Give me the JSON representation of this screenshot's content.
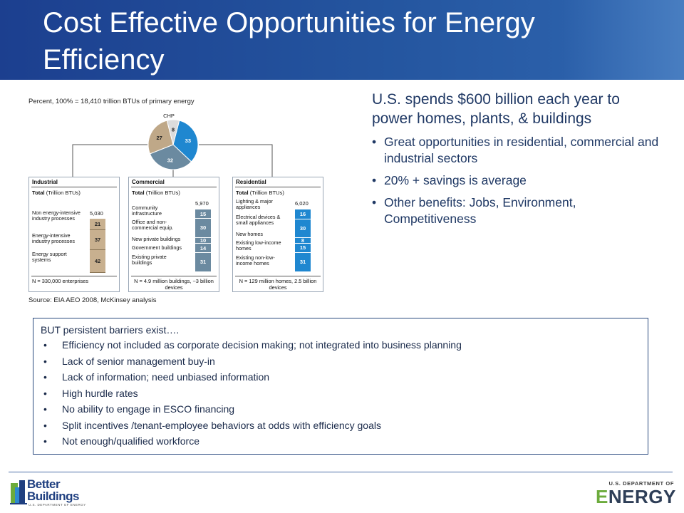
{
  "title": "Cost Effective Opportunities for Energy Efficiency",
  "figure": {
    "caption": "Percent, 100% = 18,410 trillion BTUs of primary energy",
    "source": "Source: EIA AEO 2008, McKinsey analysis"
  },
  "chart_data": [
    {
      "type": "pie",
      "categories": [
        "Commercial",
        "Residential",
        "Industrial",
        "CHP"
      ],
      "values": [
        33,
        32,
        27,
        8
      ],
      "slice_labels": [
        "33",
        "32",
        "27",
        "8"
      ],
      "callout": "CHP",
      "colors": [
        "#1f87d0",
        "#6b8aa0",
        "#bfa888",
        "#dcdcdc"
      ]
    },
    {
      "type": "bar",
      "title": "Industrial",
      "subtitle_bold": "Total",
      "subtitle_rest": " (Trillion BTUs)",
      "total": "5,030",
      "categories": [
        "Non energy-intensive industry processes",
        "Energy-intensive industry processes",
        "Energy support systems"
      ],
      "values": [
        21,
        37,
        42
      ],
      "footnote": "N = 330,000 enterprises",
      "color": "#c8b08f"
    },
    {
      "type": "bar",
      "title": "Commercial",
      "subtitle_bold": "Total",
      "subtitle_rest": " (Trillion BTUs)",
      "total": "5,970",
      "categories": [
        "Community infrastructure",
        "Office and non-commercial equip.",
        "New private buildings",
        "Government buildings",
        "Existing private buildings"
      ],
      "values": [
        15,
        30,
        10,
        14,
        31
      ],
      "footnote": "N = 4.9 million buildings, ~3 billion devices",
      "color": "#6b8aa0"
    },
    {
      "type": "bar",
      "title": "Residential",
      "subtitle_bold": "Total",
      "subtitle_rest": " (Trillion BTUs)",
      "total": "6,020",
      "categories": [
        "Lighting & major appliances",
        "Electrical devices & small appliances",
        "New homes",
        "Existing low-income homes",
        "Existing non-low-income homes"
      ],
      "values": [
        16,
        30,
        8,
        15,
        31
      ],
      "footnote": "N = 129 million homes, 2.5 billion devices",
      "color": "#1f87d0"
    }
  ],
  "right": {
    "lead": "U.S. spends $600 billion each year to power homes, plants, & buildings",
    "bullets": [
      "Great opportunities in residential, commercial and industrial sectors",
      "20% + savings is average",
      "Other benefits: Jobs, Environment, Competitiveness"
    ]
  },
  "barriers": {
    "heading": "BUT persistent barriers exist….",
    "items": [
      "Efficiency not included as corporate  decision making; not integrated into business planning",
      "Lack of senior management buy-in",
      "Lack of information; need unbiased information",
      "High hurdle rates",
      "No ability to engage in ESCO financing",
      "Split incentives /tenant-employee behaviors at odds with efficiency goals",
      "Not enough/qualified workforce"
    ]
  },
  "footer": {
    "bb_line1": "Better",
    "bb_line2": "Buildings",
    "bb_sub": "U.S. DEPARTMENT OF ENERGY",
    "doe_line1": "U.S. DEPARTMENT OF",
    "doe_line2": "ENERGY"
  },
  "colors": {
    "banner": "#1c3f8f",
    "text": "#1f3864",
    "accent_green": "#6cab3c"
  }
}
